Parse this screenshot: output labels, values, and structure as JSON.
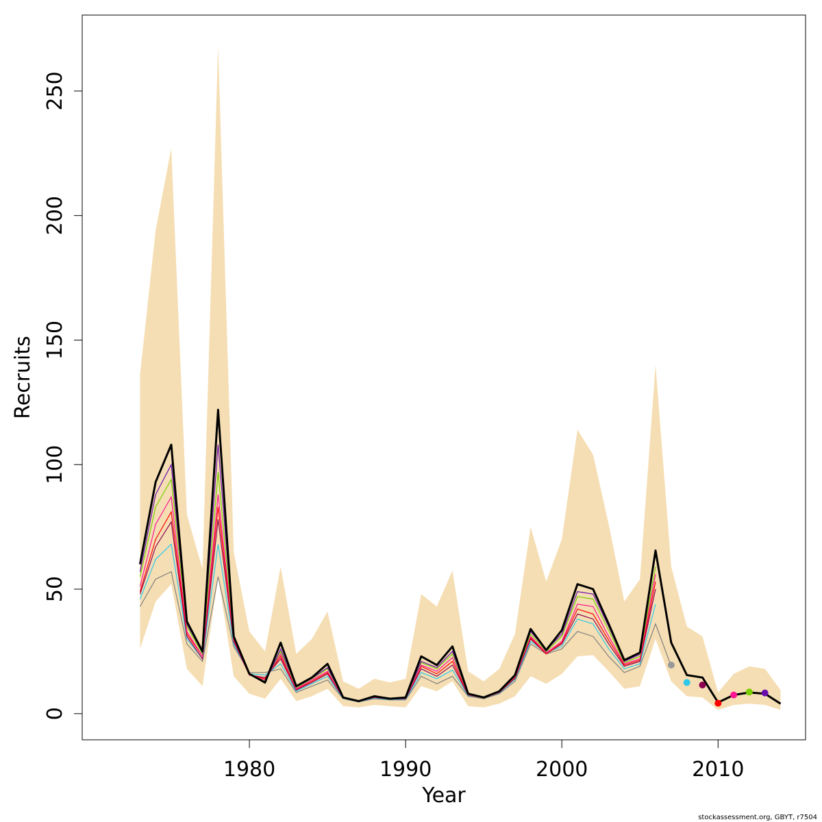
{
  "chart_data": {
    "type": "line",
    "xlabel": "Year",
    "ylabel": "Recruits",
    "xlim": [
      1969.3,
      2015.6
    ],
    "ylim": [
      -10.5,
      280.5
    ],
    "x_ticks": [
      1980,
      1990,
      2000,
      2010
    ],
    "y_ticks": [
      0,
      50,
      100,
      150,
      200,
      250
    ],
    "credit": "stockassessment.org, GBYT, r7504",
    "band_color": "#F5DEB3",
    "years": [
      1973,
      1974,
      1975,
      1976,
      1977,
      1978,
      1979,
      1980,
      1981,
      1982,
      1983,
      1984,
      1985,
      1986,
      1987,
      1988,
      1989,
      1990,
      1991,
      1992,
      1993,
      1994,
      1995,
      1996,
      1997,
      1998,
      1999,
      2000,
      2001,
      2002,
      2003,
      2004,
      2005,
      2006,
      2007,
      2008,
      2009,
      2010,
      2011,
      2012,
      2013,
      2014
    ],
    "band_upper": [
      136,
      194,
      227,
      80,
      58,
      268,
      65,
      33,
      25,
      59,
      24,
      30,
      41,
      13,
      10,
      14,
      12.5,
      14,
      48,
      43,
      57.5,
      17,
      13,
      18,
      32,
      75,
      53,
      70,
      114,
      104,
      76,
      45,
      54,
      140,
      59,
      35,
      31,
      8.5,
      16,
      19,
      18,
      9.5
    ],
    "band_lower": [
      26,
      45,
      52,
      18,
      11,
      55,
      15,
      8,
      6,
      14,
      5,
      7,
      10,
      3,
      2.5,
      3.5,
      3,
      2.5,
      11,
      9,
      13,
      3,
      2.5,
      4,
      7,
      15,
      12,
      16,
      23,
      23.5,
      17,
      10,
      11,
      30,
      13,
      7,
      6.5,
      1.5,
      3.5,
      4,
      3.5,
      1.5
    ],
    "main_series": {
      "name": "",
      "color": "#000000",
      "values": [
        60,
        93,
        108,
        37,
        25,
        122,
        31,
        16,
        12.5,
        28.5,
        11,
        14.5,
        20,
        6.5,
        5,
        7,
        6,
        6.5,
        23,
        19.5,
        27,
        8,
        6.5,
        9,
        15.5,
        34,
        25.5,
        33.5,
        52,
        50,
        36,
        21.5,
        24.5,
        65.5,
        28.5,
        15.5,
        14.5,
        4.5,
        7.5,
        8.5,
        8,
        4
      ]
    },
    "retro_series": [
      {
        "color": "#7f7f7f",
        "values": [
          43,
          54,
          57,
          28,
          21,
          55,
          27,
          16.5,
          16.5,
          18,
          8.5,
          11,
          13.5,
          6,
          4.7,
          6,
          5.5,
          5.5,
          15,
          12,
          15,
          7,
          6,
          8,
          13,
          28,
          24,
          26,
          33,
          31,
          23,
          16.5,
          19,
          36,
          19
        ]
      },
      {
        "color": "#2ec8ea",
        "values": [
          46,
          62,
          68,
          30,
          22,
          68,
          28,
          16,
          15.5,
          20,
          9,
          12,
          15,
          6.2,
          4.8,
          6.3,
          5.7,
          5.8,
          16.5,
          14,
          17.5,
          7.3,
          6.5,
          8.3,
          13.8,
          29,
          24.5,
          27,
          38,
          36,
          26,
          18,
          20,
          44
        ]
      },
      {
        "color": "#8b0050",
        "values": [
          48,
          67,
          77,
          31,
          22,
          78,
          29,
          15.5,
          14.5,
          22,
          9.5,
          12.5,
          16,
          6.3,
          4.9,
          6.5,
          5.8,
          6,
          18,
          15,
          19.5,
          7.5,
          6.3,
          8.5,
          14.2,
          30,
          24,
          28,
          40,
          38,
          28,
          19,
          21,
          50
        ]
      },
      {
        "color": "#ff0000",
        "values": [
          49,
          70,
          81,
          32,
          23,
          83,
          29.5,
          15.5,
          14,
          23,
          9.8,
          13,
          16.5,
          6.4,
          4.9,
          6.6,
          5.9,
          6.1,
          19,
          16,
          21,
          7.6,
          6.3,
          8.6,
          14.5,
          30.5,
          24,
          28.5,
          42,
          40,
          29.5,
          19.5,
          21.5,
          53
        ]
      },
      {
        "color": "#ff1493",
        "values": [
          51,
          76,
          87,
          33,
          23,
          88,
          30,
          15.5,
          13.5,
          24,
          10,
          13.5,
          17,
          6.4,
          4.9,
          6.7,
          5.9,
          6.2,
          19.5,
          17,
          22.5,
          7.7,
          6.3,
          8.7,
          14.8,
          31,
          24.5,
          29,
          44,
          43,
          31,
          20,
          22,
          56
        ]
      },
      {
        "color": "#7ccd00",
        "values": [
          55,
          83,
          94,
          35,
          24,
          97,
          30.5,
          16,
          13,
          25,
          10.5,
          14,
          18,
          6.5,
          5,
          6.8,
          6,
          6.3,
          20.5,
          18,
          24,
          7.8,
          6.4,
          8.8,
          15,
          32,
          25,
          31,
          47,
          46,
          33.5,
          20.5,
          23,
          59
        ]
      },
      {
        "color": "#6a0dad",
        "values": [
          57,
          88,
          100,
          36,
          24.5,
          108,
          31,
          16,
          12.5,
          26,
          10.8,
          14.2,
          18.5,
          6.5,
          5,
          6.9,
          6,
          6.4,
          21,
          18.5,
          25,
          7.9,
          6.5,
          8.9,
          15.2,
          33,
          25.5,
          32,
          49,
          48,
          35,
          21,
          23.8
        ]
      }
    ],
    "terminal_points": [
      {
        "year": 2007,
        "value": 19.5,
        "color": "#999999"
      },
      {
        "year": 2008,
        "value": 12.5,
        "color": "#2ec8ea"
      },
      {
        "year": 2009,
        "value": 11.5,
        "color": "#8b0050"
      },
      {
        "year": 2010,
        "value": 4.2,
        "color": "#ff0000"
      },
      {
        "year": 2011,
        "value": 7.5,
        "color": "#ff1493"
      },
      {
        "year": 2012,
        "value": 8.7,
        "color": "#7ccd00"
      },
      {
        "year": 2013,
        "value": 8.3,
        "color": "#6a0dad"
      }
    ],
    "grid": false,
    "legend": "none"
  }
}
